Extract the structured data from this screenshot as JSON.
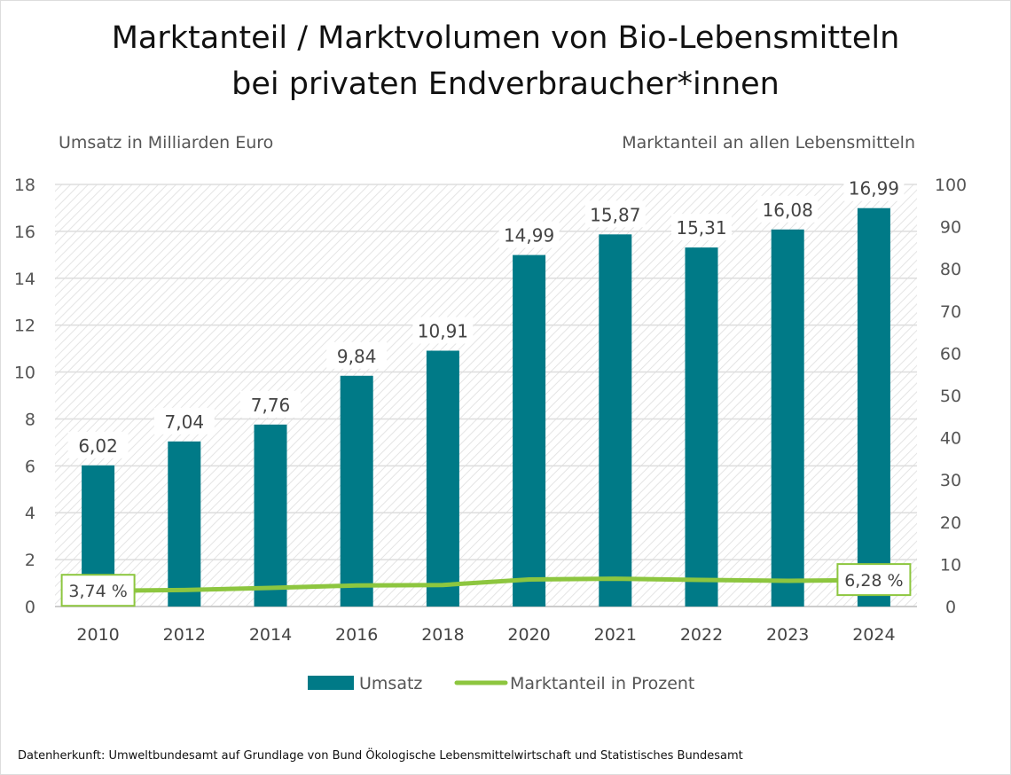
{
  "chart_data": {
    "type": "bar",
    "title": "Marktanteil / Marktvolumen von Bio-Lebensmitteln bei privaten Endverbraucher*innen",
    "title_lines": [
      "Marktanteil / Marktvolumen von Bio-Lebensmitteln",
      "bei privaten Endverbraucher*innen"
    ],
    "ylabel": "Umsatz in Milliarden Euro",
    "y2label": "Marktanteil an allen Lebensmitteln",
    "categories": [
      "2010",
      "2012",
      "2014",
      "2016",
      "2018",
      "2020",
      "2021",
      "2022",
      "2023",
      "2024"
    ],
    "series": [
      {
        "name": "Umsatz",
        "type": "bar",
        "axis": "left",
        "color": "#007a87",
        "values": [
          6.02,
          7.04,
          7.76,
          9.84,
          10.91,
          14.99,
          15.87,
          15.31,
          16.08,
          16.99
        ],
        "labels": [
          "6,02",
          "7,04",
          "7,76",
          "9,84",
          "10,91",
          "14,99",
          "15,87",
          "15,31",
          "16,08",
          "16,99"
        ]
      },
      {
        "name": "Marktanteil in Prozent",
        "type": "line",
        "axis": "right",
        "color": "#8dc63f",
        "values": [
          3.74,
          3.9,
          4.4,
          5.0,
          5.1,
          6.4,
          6.6,
          6.3,
          6.1,
          6.28
        ]
      }
    ],
    "line_callouts": [
      {
        "index": 0,
        "label": "3,74 %"
      },
      {
        "index": 9,
        "label": "6,28 %"
      }
    ],
    "ylim": [
      0,
      18
    ],
    "yticks": [
      "0",
      "2",
      "4",
      "6",
      "8",
      "10",
      "12",
      "14",
      "16",
      "18"
    ],
    "y2lim": [
      0,
      100
    ],
    "y2ticks": [
      "0",
      "10",
      "20",
      "30",
      "40",
      "50",
      "60",
      "70",
      "80",
      "90",
      "100"
    ],
    "grid": true,
    "legend_position": "bottom"
  },
  "source": "Datenherkunft: Umweltbundesamt auf Grundlage von Bund Ökologische Lebensmittelwirtschaft und Statistisches Bundesamt"
}
